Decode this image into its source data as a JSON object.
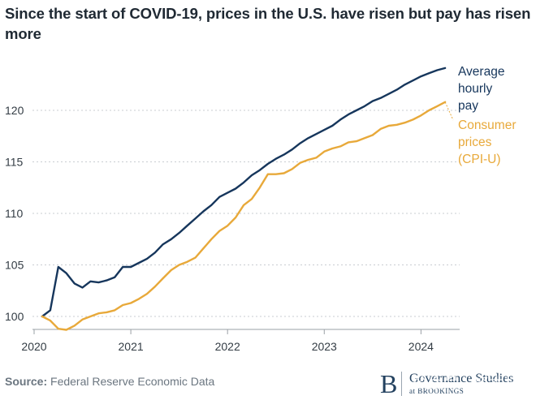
{
  "title": "Since the start of COVID-19, prices in the U.S. have risen but pay has risen more",
  "footer": {
    "source_label": "Source:",
    "source_text": "Federal Reserve Economic Data"
  },
  "logo": {
    "mark": "B",
    "line1": "Governance Studies",
    "line2": "at BROOKINGS"
  },
  "watermark": "公众号 · 资本技研",
  "chart_data": {
    "type": "line",
    "title": "Since the start of COVID-19, prices in the U.S. have risen but pay has risen more",
    "xlabel": "",
    "ylabel": "",
    "xlim": [
      2020.0,
      2024.4
    ],
    "ylim": [
      99,
      125
    ],
    "x_ticks": [
      2020,
      2021,
      2022,
      2023,
      2024
    ],
    "y_ticks": [
      100,
      105,
      110,
      115,
      120
    ],
    "grid": "horizontal-dotted",
    "legend": "inline-right",
    "series": [
      {
        "name": "Average hourly pay",
        "label_lines": [
          "Average",
          "hourly",
          "pay"
        ],
        "color": "#16365c",
        "x": [
          2020.083,
          2020.167,
          2020.25,
          2020.333,
          2020.417,
          2020.5,
          2020.583,
          2020.667,
          2020.75,
          2020.833,
          2020.917,
          2021.0,
          2021.083,
          2021.167,
          2021.25,
          2021.333,
          2021.417,
          2021.5,
          2021.583,
          2021.667,
          2021.75,
          2021.833,
          2021.917,
          2022.0,
          2022.083,
          2022.167,
          2022.25,
          2022.333,
          2022.417,
          2022.5,
          2022.583,
          2022.667,
          2022.75,
          2022.833,
          2022.917,
          2023.0,
          2023.083,
          2023.167,
          2023.25,
          2023.333,
          2023.417,
          2023.5,
          2023.583,
          2023.667,
          2023.75,
          2023.833,
          2023.917,
          2024.0,
          2024.083,
          2024.167,
          2024.25
        ],
        "values": [
          100.0,
          100.6,
          104.8,
          104.2,
          103.2,
          102.8,
          103.4,
          103.3,
          103.5,
          103.8,
          104.8,
          104.8,
          105.2,
          105.6,
          106.2,
          107.0,
          107.5,
          108.1,
          108.8,
          109.5,
          110.2,
          110.8,
          111.6,
          112.0,
          112.4,
          113.0,
          113.7,
          114.2,
          114.8,
          115.3,
          115.7,
          116.2,
          116.8,
          117.3,
          117.7,
          118.1,
          118.5,
          119.1,
          119.6,
          120.0,
          120.4,
          120.9,
          121.2,
          121.6,
          122.0,
          122.5,
          122.9,
          123.3,
          123.6,
          123.9,
          124.1
        ]
      },
      {
        "name": "Consumer prices (CPI-U)",
        "label_lines": [
          "Consumer",
          "prices",
          "(CPI-U)"
        ],
        "color": "#e8a93a",
        "x": [
          2020.083,
          2020.167,
          2020.25,
          2020.333,
          2020.417,
          2020.5,
          2020.583,
          2020.667,
          2020.75,
          2020.833,
          2020.917,
          2021.0,
          2021.083,
          2021.167,
          2021.25,
          2021.333,
          2021.417,
          2021.5,
          2021.583,
          2021.667,
          2021.75,
          2021.833,
          2021.917,
          2022.0,
          2022.083,
          2022.167,
          2022.25,
          2022.333,
          2022.417,
          2022.5,
          2022.583,
          2022.667,
          2022.75,
          2022.833,
          2022.917,
          2023.0,
          2023.083,
          2023.167,
          2023.25,
          2023.333,
          2023.417,
          2023.5,
          2023.583,
          2023.667,
          2023.75,
          2023.833,
          2023.917,
          2024.0,
          2024.083,
          2024.167,
          2024.25
        ],
        "values": [
          100.0,
          99.6,
          98.8,
          98.7,
          99.1,
          99.7,
          100.0,
          100.3,
          100.4,
          100.6,
          101.1,
          101.3,
          101.7,
          102.2,
          102.9,
          103.7,
          104.5,
          105.0,
          105.3,
          105.7,
          106.6,
          107.5,
          108.3,
          108.8,
          109.6,
          110.8,
          111.4,
          112.5,
          113.8,
          113.8,
          113.9,
          114.3,
          114.9,
          115.2,
          115.4,
          116.0,
          116.3,
          116.5,
          116.9,
          117.0,
          117.3,
          117.6,
          118.2,
          118.5,
          118.6,
          118.8,
          119.1,
          119.5,
          120.0,
          120.4,
          120.8
        ]
      }
    ]
  }
}
